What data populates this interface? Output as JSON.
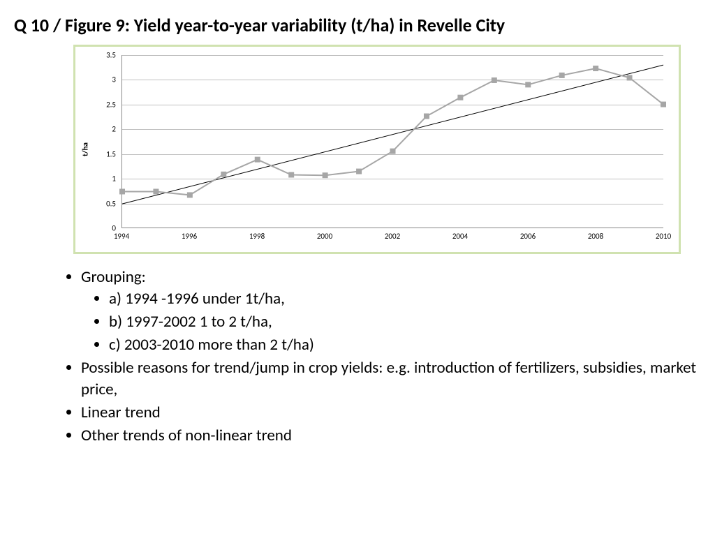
{
  "title": "Q 10 / Figure 9: Yield year-to-year variability (t/ha) in Revelle City",
  "chart": {
    "type": "line",
    "ylabel": "t/ha",
    "ylim": [
      0,
      3.5
    ],
    "ytick_step": 0.5,
    "yticks": [
      0,
      0.5,
      1,
      1.5,
      2,
      2.5,
      3,
      3.5
    ],
    "xlim": [
      1994,
      2010
    ],
    "xtick_step": 2,
    "xticks": [
      1994,
      1996,
      1998,
      2000,
      2002,
      2004,
      2006,
      2008,
      2010
    ],
    "years": [
      1994,
      1995,
      1996,
      1997,
      1998,
      1999,
      2000,
      2001,
      2002,
      2003,
      2004,
      2005,
      2006,
      2007,
      2008,
      2009,
      2010
    ],
    "values": [
      0.73,
      0.73,
      0.66,
      1.08,
      1.38,
      1.07,
      1.06,
      1.14,
      1.55,
      2.26,
      2.64,
      2.99,
      2.9,
      3.09,
      3.23,
      3.04,
      2.5
    ],
    "series_color": "#a6a6a6",
    "marker_shape": "square",
    "marker_size": 7,
    "line_width": 2,
    "trend_line": {
      "x1": 1994,
      "y1": 0.48,
      "x2": 2010,
      "y2": 3.3
    },
    "trend_color": "#000000",
    "trend_width": 1,
    "background_color": "#ffffff",
    "border_color": "#d0e2b0",
    "grid_color": "#c0c0c0",
    "axis_color": "#888888",
    "tick_fontsize": 11,
    "ylabel_fontsize": 11
  },
  "bullets": {
    "items": [
      {
        "text": "Grouping:",
        "sub": [
          "a) 1994 -1996 under 1t/ha,",
          "b) 1997-2002 1 to 2 t/ha,",
          "c) 2003-2010 more than 2 t/ha)"
        ]
      },
      {
        "text": "Possible reasons for trend/jump in crop yields: e.g. introduction of fertilizers, subsidies, market price,"
      },
      {
        "text": "Linear trend"
      },
      {
        "text": "Other trends of non-linear trend"
      }
    ]
  }
}
